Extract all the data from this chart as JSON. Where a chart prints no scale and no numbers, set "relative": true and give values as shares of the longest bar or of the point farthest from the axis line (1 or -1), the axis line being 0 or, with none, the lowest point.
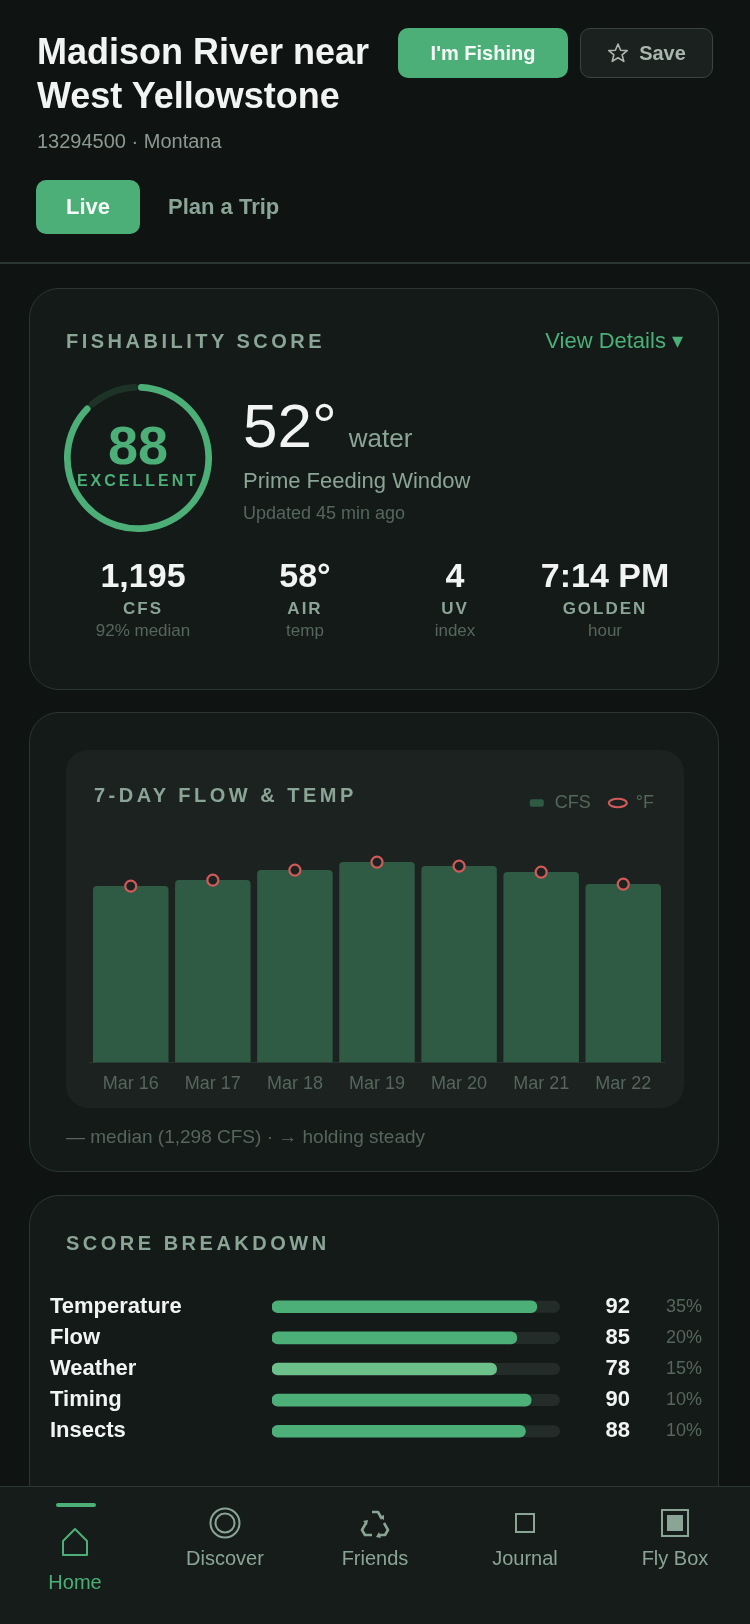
{
  "chart_data": [
    {
      "type": "other",
      "title": "Madison River near West Yellowstone",
      "subtitle": "13294500 · Montana",
      "annotations": [
        "I'm Fishing",
        "Save",
        "Live",
        "Plan a Trip",
        "Home",
        "Discover",
        "Friends",
        "Journal",
        "Fly Box"
      ]
    },
    {
      "type": "donut",
      "title": "FISHABILITY SCORE",
      "categories": [
        null,
        null
      ],
      "values": [
        88,
        12
      ],
      "colors": [
        "#4caf78",
        "#1d3328"
      ],
      "value_labels": [
        "88",
        null
      ],
      "annotations": [
        "EXCELLENT",
        "View Details ▾"
      ]
    },
    {
      "type": "other",
      "annotations": [
        "52°",
        "water",
        "Prime Feeding Window",
        "Updated 45 min ago",
        "1,195",
        "CFS",
        "92% median",
        "58°",
        "AIR",
        "temp",
        "4",
        "UV",
        "index",
        "7:14 PM",
        "GOLDEN",
        "hour"
      ]
    },
    {
      "type": "bar",
      "title": "7-DAY FLOW & TEMP",
      "categories": [
        "Mar 16",
        "Mar 17",
        "Mar 18",
        "Mar 19",
        "Mar 20",
        "Mar 21",
        "Mar 22"
      ],
      "relative": true,
      "legend": "top right",
      "marker": "circle",
      "series": [
        {
          "name": "CFS",
          "color": "#2f5b44",
          "values": [
            0.88,
            0.91,
            0.96,
            1,
            0.98,
            0.95,
            0.89
          ]
        },
        {
          "name": "°F",
          "type": "scatter",
          "color": "#d05a5a",
          "x": [
            "Mar 16",
            "Mar 17",
            "Mar 18",
            "Mar 19",
            "Mar 20",
            "Mar 21",
            "Mar 22"
          ],
          "values": [
            0.88,
            0.91,
            0.96,
            1,
            0.98,
            0.95,
            0.89
          ]
        }
      ],
      "annotations": [
        "— median (1,298 CFS) · → holding steady"
      ]
    },
    {
      "type": "bar",
      "orientation": "horizontal",
      "title": "SCORE BREAKDOWN",
      "categories": [
        "Temperature",
        "Flow",
        "Weather",
        "Timing",
        "Insects"
      ],
      "values": [
        92,
        85,
        78,
        90,
        88
      ],
      "colors": [
        "#4caf78",
        "#4caf78",
        "#6cc08a",
        "#4caf78",
        "#4caf78"
      ],
      "xlim": [
        0,
        100
      ],
      "data_labels": true,
      "tick_labels": "y",
      "annotations": [
        "35%",
        "20%",
        "15%",
        "10%",
        "10%"
      ]
    }
  ]
}
